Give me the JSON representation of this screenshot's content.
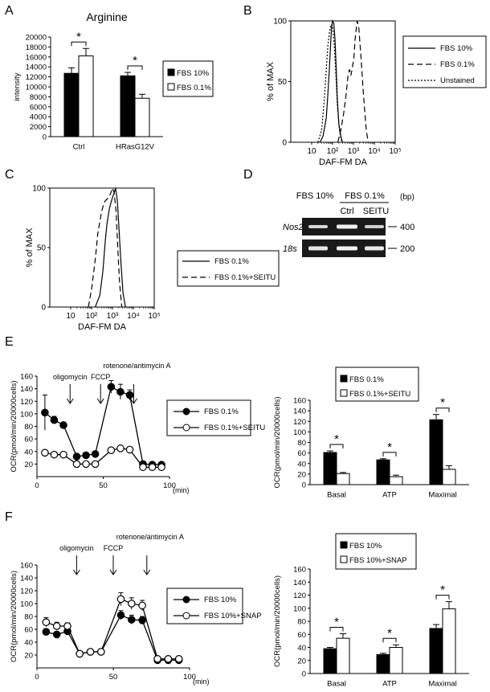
{
  "panels": {
    "A": "A",
    "B": "B",
    "C": "C",
    "D": "D",
    "E": "E",
    "F": "F"
  },
  "chart_data": [
    {
      "id": "A",
      "type": "bar",
      "title": "Arginine",
      "ylabel": "intensity",
      "categories": [
        "Ctrl",
        "HRasG12V"
      ],
      "ylim": [
        0,
        20000
      ],
      "yticks": [
        0,
        2000,
        4000,
        6000,
        8000,
        10000,
        12000,
        14000,
        16000,
        18000,
        20000
      ],
      "series": [
        {
          "name": "FBS 10%",
          "color": "#000000",
          "values": [
            12700,
            12200
          ],
          "err": [
            1100,
            700
          ]
        },
        {
          "name": "FBS 0.1%",
          "color": "#ffffff",
          "values": [
            16200,
            7700
          ],
          "err": [
            1500,
            800
          ]
        }
      ],
      "sig": [
        "*",
        "*"
      ]
    },
    {
      "id": "B",
      "type": "line",
      "title": "",
      "xlabel": "DAF-FM DA",
      "ylabel": "% of MAX",
      "xscale": "log",
      "xlim": [
        1,
        100000
      ],
      "ylim": [
        0,
        100
      ],
      "yticks": [
        0,
        50,
        100
      ],
      "xticks": [
        {
          "v": 10,
          "label": "10"
        },
        {
          "v": 100,
          "label": "10²"
        },
        {
          "v": 1000,
          "label": "10³"
        },
        {
          "v": 10000,
          "label": "10⁴"
        },
        {
          "v": 100000,
          "label": "10⁵"
        }
      ],
      "series": [
        {
          "name": "FBS 10%",
          "dash": "solid",
          "x": [
            25,
            35,
            50,
            60,
            70,
            80,
            90,
            100,
            115,
            130,
            150,
            170,
            200,
            250,
            300
          ],
          "y": [
            0,
            5,
            20,
            40,
            60,
            80,
            95,
            100,
            98,
            85,
            60,
            35,
            15,
            5,
            0
          ]
        },
        {
          "name": "FBS 0.1%",
          "dash": "dashed",
          "x": [
            180,
            250,
            350,
            450,
            550,
            650,
            750,
            900,
            1050,
            1200,
            1500,
            1800,
            2300,
            3000,
            4000,
            5000
          ],
          "y": [
            0,
            10,
            25,
            40,
            55,
            60,
            55,
            62,
            70,
            85,
            100,
            95,
            70,
            40,
            12,
            0
          ]
        },
        {
          "name": "Unstained",
          "dash": "dotted",
          "x": [
            20,
            30,
            40,
            50,
            60,
            70,
            85,
            100,
            120,
            140,
            170,
            220,
            280
          ],
          "y": [
            0,
            10,
            35,
            60,
            80,
            90,
            97,
            96,
            80,
            60,
            30,
            8,
            0
          ]
        }
      ]
    },
    {
      "id": "C",
      "type": "line",
      "title": "",
      "xlabel": "DAF-FM DA",
      "ylabel": "% of MAX",
      "xscale": "log",
      "xlim": [
        1,
        100000
      ],
      "ylim": [
        0,
        100
      ],
      "yticks": [
        0,
        50,
        100
      ],
      "xticks": [
        {
          "v": 10,
          "label": "10"
        },
        {
          "v": 100,
          "label": "10²"
        },
        {
          "v": 1000,
          "label": "10³"
        },
        {
          "v": 10000,
          "label": "10⁴"
        },
        {
          "v": 100000,
          "label": "10⁵"
        }
      ],
      "series": [
        {
          "name": "FBS 0.1%",
          "dash": "solid",
          "x": [
            150,
            250,
            350,
            450,
            550,
            700,
            850,
            1000,
            1200,
            1400,
            1700,
            2000,
            2500,
            3200,
            4200
          ],
          "y": [
            0,
            10,
            30,
            55,
            70,
            82,
            88,
            92,
            96,
            100,
            90,
            70,
            40,
            12,
            0
          ]
        },
        {
          "name": "FBS 0.1%+SEITU",
          "dash": "dashed",
          "x": [
            70,
            100,
            150,
            200,
            300,
            400,
            500,
            650,
            800,
            1000,
            1200,
            1500,
            1800,
            2200,
            2800
          ],
          "y": [
            0,
            15,
            40,
            62,
            80,
            88,
            90,
            92,
            95,
            100,
            96,
            80,
            50,
            20,
            0
          ]
        }
      ]
    },
    {
      "id": "E-left",
      "type": "line",
      "xlabel": "(min)",
      "ylabel": "OCR(pmol/min/20000cells)",
      "xlim": [
        0,
        100
      ],
      "ylim": [
        0,
        160
      ],
      "yticks": [
        20,
        40,
        60,
        80,
        100,
        120,
        140,
        160
      ],
      "xticks": [
        0,
        50,
        100
      ],
      "annotations": [
        {
          "x": 25,
          "label": "oligomycin"
        },
        {
          "x": 48,
          "label": "FCCP"
        },
        {
          "x": 73,
          "label": "rotenone/antimycin A"
        }
      ],
      "series": [
        {
          "name": "FBS 0.1%",
          "marker": "filled",
          "x": [
            6,
            13,
            20,
            30,
            37,
            44,
            56,
            63,
            70,
            80,
            87,
            94
          ],
          "y": [
            102,
            90,
            82,
            32,
            34,
            36,
            143,
            135,
            130,
            20,
            19,
            19
          ],
          "err": [
            28,
            6,
            4,
            3,
            3,
            3,
            10,
            12,
            8,
            3,
            3,
            2
          ]
        },
        {
          "name": "FBS 0.1%+SEITU",
          "marker": "open",
          "x": [
            6,
            13,
            20,
            30,
            37,
            44,
            56,
            63,
            70,
            80,
            87,
            94
          ],
          "y": [
            38,
            35,
            35,
            20,
            20,
            20,
            42,
            45,
            43,
            15,
            15,
            15
          ],
          "err": [
            3,
            3,
            3,
            2,
            2,
            2,
            4,
            4,
            4,
            2,
            2,
            2
          ]
        }
      ]
    },
    {
      "id": "E-right",
      "type": "bar",
      "ylabel": "OCR(pmol/min/20000cells)",
      "categories": [
        "Basal",
        "ATP",
        "Maximal"
      ],
      "ylim": [
        0,
        160
      ],
      "yticks": [
        0,
        20,
        40,
        60,
        80,
        100,
        120,
        140,
        160
      ],
      "series": [
        {
          "name": "FBS 0.1%",
          "color": "#000000",
          "values": [
            61,
            47,
            123
          ],
          "err": [
            3,
            2,
            10
          ]
        },
        {
          "name": "FBS 0.1%+SEITU",
          "color": "#ffffff",
          "values": [
            21,
            15,
            29
          ],
          "err": [
            2,
            3,
            7
          ]
        }
      ],
      "sig": [
        "*",
        "*",
        "*"
      ]
    },
    {
      "id": "F-left",
      "type": "line",
      "xlabel": "(min)",
      "ylabel": "OCR(pmol/min/20000cells)",
      "xlim": [
        0,
        100
      ],
      "ylim": [
        0,
        160
      ],
      "yticks": [
        20,
        40,
        60,
        80,
        100,
        120,
        140,
        160
      ],
      "xticks": [
        0,
        50,
        100
      ],
      "annotations": [
        {
          "x": 26,
          "label": "oligomycin"
        },
        {
          "x": 50,
          "label": "FCCP"
        },
        {
          "x": 72,
          "label": "rotenone/antimycin A"
        }
      ],
      "series": [
        {
          "name": "FBS 10%",
          "marker": "filled",
          "x": [
            6,
            13,
            20,
            28,
            35,
            42,
            55,
            62,
            69,
            79,
            86,
            93
          ],
          "y": [
            56,
            52,
            57,
            22,
            25,
            25,
            82,
            75,
            74,
            12,
            12,
            12
          ],
          "err": [
            5,
            4,
            4,
            2,
            2,
            2,
            7,
            7,
            6,
            2,
            2,
            2
          ]
        },
        {
          "name": "FBS 10%+SNAP",
          "marker": "open",
          "x": [
            6,
            13,
            20,
            28,
            35,
            42,
            55,
            62,
            69,
            79,
            86,
            93
          ],
          "y": [
            71,
            65,
            65,
            22,
            25,
            25,
            107,
            100,
            97,
            14,
            14,
            14
          ],
          "err": [
            7,
            6,
            5,
            2,
            2,
            2,
            10,
            9,
            8,
            2,
            2,
            2
          ]
        }
      ]
    },
    {
      "id": "F-right",
      "type": "bar",
      "ylabel": "OCR(pmol/min/20000cells)",
      "categories": [
        "Basal",
        "ATP",
        "Maximal"
      ],
      "ylim": [
        0,
        160
      ],
      "yticks": [
        0,
        20,
        40,
        60,
        80,
        100,
        120,
        140,
        160
      ],
      "series": [
        {
          "name": "FBS 10%",
          "color": "#000000",
          "values": [
            38,
            29,
            69
          ],
          "err": [
            2,
            2,
            6
          ]
        },
        {
          "name": "FBS 10%+SNAP",
          "color": "#ffffff",
          "values": [
            54,
            40,
            99
          ],
          "err": [
            7,
            4,
            11
          ]
        }
      ],
      "sig": [
        "*",
        "*",
        "*"
      ]
    }
  ],
  "gel": {
    "header_left": "FBS 10%",
    "header_group": "FBS 0.1%",
    "lanes": [
      "Ctrl",
      "SEITU"
    ],
    "rows": [
      "Nos2",
      "18s"
    ],
    "unit": "(bp)",
    "markers": [
      "400",
      "200"
    ]
  }
}
